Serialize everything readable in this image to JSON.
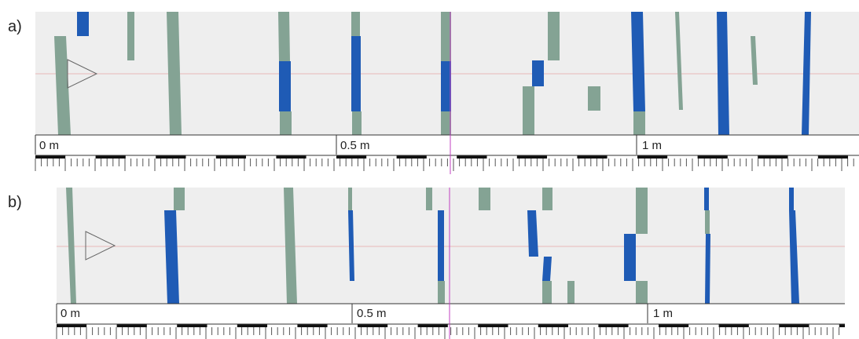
{
  "figure": {
    "panels": [
      {
        "label": "a)",
        "scale_labels": [
          "0 m",
          "0.5 m",
          "1 m"
        ],
        "segments": [
          {
            "color": "blue",
            "x1": 98,
            "x2": 113,
            "y1": 15,
            "y2": 46
          },
          {
            "color": "green",
            "x1": 162,
            "x2": 171,
            "y1": 15,
            "y2": 77
          },
          {
            "color": "green",
            "x1": 69,
            "x2": 84,
            "y1": 46,
            "y2": 172,
            "x1b": 74,
            "x2b": 90
          },
          {
            "color": "green",
            "x1": 212,
            "x2": 227,
            "y1": 15,
            "y2": 172,
            "x1b": 216,
            "x2b": 231
          },
          {
            "color": "green",
            "x1": 354,
            "x2": 368,
            "y1": 15,
            "y2": 78,
            "x1b": 355,
            "x2b": 369
          },
          {
            "color": "blue",
            "x1": 355,
            "x2": 370,
            "y1": 78,
            "y2": 142
          },
          {
            "color": "green",
            "x1": 356,
            "x2": 371,
            "y1": 142,
            "y2": 172
          },
          {
            "color": "green",
            "x1": 447,
            "x2": 458,
            "y1": 15,
            "y2": 46
          },
          {
            "color": "blue",
            "x1": 447,
            "x2": 459,
            "y1": 46,
            "y2": 142
          },
          {
            "color": "green",
            "x1": 448,
            "x2": 460,
            "y1": 142,
            "y2": 172
          },
          {
            "color": "green",
            "x1": 561,
            "x2": 574,
            "y1": 15,
            "y2": 78
          },
          {
            "color": "blue",
            "x1": 561,
            "x2": 574,
            "y1": 78,
            "y2": 142
          },
          {
            "color": "green",
            "x1": 561,
            "x2": 574,
            "y1": 142,
            "y2": 172
          },
          {
            "color": "green",
            "x1": 697,
            "x2": 712,
            "y1": 15,
            "y2": 77
          },
          {
            "color": "blue",
            "x1": 677,
            "x2": 692,
            "y1": 77,
            "y2": 110
          },
          {
            "color": "green",
            "x1": 665,
            "x2": 680,
            "y1": 110,
            "y2": 172
          },
          {
            "color": "green",
            "x1": 748,
            "x2": 764,
            "y1": 110,
            "y2": 141
          },
          {
            "color": "blue",
            "x1": 803,
            "x2": 818,
            "y1": 15,
            "y2": 142,
            "x1b": 806,
            "x2b": 821
          },
          {
            "color": "green",
            "x1": 806,
            "x2": 821,
            "y1": 142,
            "y2": 172
          },
          {
            "color": "green",
            "x1": 859,
            "x2": 864,
            "y1": 15,
            "y2": 140,
            "x1b": 864,
            "x2b": 869
          },
          {
            "color": "blue",
            "x1": 912,
            "x2": 925,
            "y1": 15,
            "y2": 172,
            "x1b": 914,
            "x2b": 928
          },
          {
            "color": "green",
            "x1": 955,
            "x2": 961,
            "y1": 46,
            "y2": 108,
            "x1b": 958,
            "x2b": 964
          },
          {
            "color": "blue",
            "x1": 1024,
            "x2": 1032,
            "y1": 15,
            "y2": 172,
            "x1b": 1020,
            "x2b": 1029
          }
        ]
      },
      {
        "label": "b)",
        "scale_labels": [
          "0 m",
          "0.5 m",
          "1 m"
        ],
        "segments": [
          {
            "color": "green",
            "x1": 221,
            "x2": 235,
            "y1": 239,
            "y2": 268
          },
          {
            "color": "blue",
            "x1": 209,
            "x2": 224,
            "y1": 268,
            "y2": 387,
            "x1b": 213,
            "x2b": 228
          },
          {
            "color": "green",
            "x1": 84,
            "x2": 92,
            "y1": 239,
            "y2": 387,
            "x1b": 90,
            "x2b": 97
          },
          {
            "color": "green",
            "x1": 361,
            "x2": 373,
            "y1": 239,
            "y2": 387,
            "x1b": 365,
            "x2b": 378
          },
          {
            "color": "green",
            "x1": 443,
            "x2": 448,
            "y1": 239,
            "y2": 268
          },
          {
            "color": "blue",
            "x1": 443,
            "x2": 449,
            "y1": 268,
            "y2": 358,
            "x1b": 445,
            "x2b": 451
          },
          {
            "color": "green",
            "x1": 542,
            "x2": 550,
            "y1": 239,
            "y2": 268
          },
          {
            "color": "blue",
            "x1": 557,
            "x2": 565,
            "y1": 268,
            "y2": 358
          },
          {
            "color": "green",
            "x1": 557,
            "x2": 566,
            "y1": 358,
            "y2": 387
          },
          {
            "color": "green",
            "x1": 609,
            "x2": 624,
            "y1": 239,
            "y2": 268
          },
          {
            "color": "green",
            "x1": 690,
            "x2": 703,
            "y1": 239,
            "y2": 268
          },
          {
            "color": "blue",
            "x1": 671,
            "x2": 682,
            "y1": 268,
            "y2": 327,
            "x1b": 673,
            "x2b": 685
          },
          {
            "color": "blue",
            "x1": 692,
            "x2": 702,
            "y1": 327,
            "y2": 358,
            "x1b": 690,
            "x2b": 700
          },
          {
            "color": "green",
            "x1": 690,
            "x2": 702,
            "y1": 358,
            "y2": 387
          },
          {
            "color": "green",
            "x1": 722,
            "x2": 731,
            "y1": 358,
            "y2": 387
          },
          {
            "color": "green",
            "x1": 809,
            "x2": 824,
            "y1": 239,
            "y2": 298
          },
          {
            "color": "blue",
            "x1": 794,
            "x2": 809,
            "y1": 298,
            "y2": 358
          },
          {
            "color": "green",
            "x1": 809,
            "x2": 824,
            "y1": 358,
            "y2": 387
          },
          {
            "color": "blue",
            "x1": 896,
            "x2": 902,
            "y1": 239,
            "y2": 268
          },
          {
            "color": "green",
            "x1": 897,
            "x2": 903,
            "y1": 268,
            "y2": 298
          },
          {
            "color": "blue",
            "x1": 898,
            "x2": 904,
            "y1": 298,
            "y2": 387,
            "x1b": 897,
            "x2b": 903
          },
          {
            "color": "blue",
            "x1": 1004,
            "x2": 1010,
            "y1": 239,
            "y2": 268
          },
          {
            "color": "blue",
            "x1": 1004,
            "x2": 1012,
            "y1": 268,
            "y2": 387,
            "x1b": 1007,
            "x2b": 1017
          }
        ]
      }
    ],
    "colors": {
      "blue": "#1f5bb5",
      "green": "#84a394",
      "background": "#eeeeee",
      "cursor": "#c040c0",
      "centerline": "#e8b8b8"
    }
  }
}
